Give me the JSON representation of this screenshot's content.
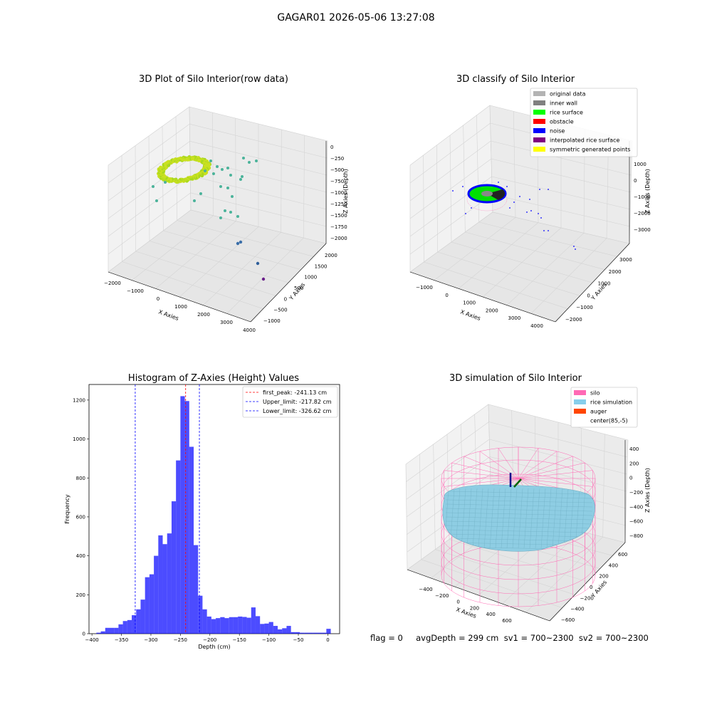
{
  "suptitle": "GAGAR01 2026-05-06 13:27:08",
  "panels": {
    "raw": {
      "title": "3D Plot of Silo Interior(row data)",
      "xlabel": "X Axies",
      "ylabel": "Y Axies",
      "zlabel": "Z Axies (Depth)",
      "xticks": [
        "−2000",
        "−1000",
        "0",
        "1000",
        "2000",
        "3000",
        "4000"
      ],
      "yticks": [
        "−1000",
        "−500",
        "0",
        "500",
        "1000",
        "1500",
        "2000"
      ],
      "zticks": [
        "0",
        "−250",
        "−500",
        "−750",
        "−1000",
        "−1250",
        "−1500",
        "−1750",
        "−2000"
      ]
    },
    "classify": {
      "title": "3D classify of Silo Interior",
      "xlabel": "X Axies",
      "ylabel": "Y Axies",
      "zlabel": "Z Axies (Depth)",
      "xticks": [
        "−1000",
        "0",
        "1000",
        "2000",
        "3000",
        "4000"
      ],
      "yticks": [
        "−2000",
        "−1000",
        "0",
        "1000",
        "2000",
        "3000"
      ],
      "zticks": [
        "1000",
        "0",
        "−1000",
        "−2000",
        "−3000"
      ],
      "legend": [
        {
          "label": "original data",
          "color": "#b3b3b3"
        },
        {
          "label": "inner wall",
          "color": "#808080"
        },
        {
          "label": "rice surface",
          "color": "#00ff00"
        },
        {
          "label": "obstacle",
          "color": "#ff0000"
        },
        {
          "label": "noise",
          "color": "#0000ff"
        },
        {
          "label": "interpolated rice surface",
          "color": "#800080"
        },
        {
          "label": "symmetric generated points",
          "color": "#ffff00"
        }
      ]
    },
    "histogram": {
      "title": "Histogram of Z-Axies (Height) Values",
      "xlabel": "Depth (cm)",
      "ylabel": "Frequency",
      "legend": [
        {
          "label": "first_peak: -241.13 cm",
          "color": "#ff0000"
        },
        {
          "label": "Upper_limit: -217.82 cm",
          "color": "#0000ff"
        },
        {
          "label": "Lower_limit: -326.62 cm",
          "color": "#0000ff"
        }
      ]
    },
    "simulation": {
      "title": "3D simulation of Silo Interior",
      "xlabel": "X Axies",
      "ylabel": "Y Axies",
      "zlabel": "Z Axies (Depth)",
      "xticks": [
        "−400",
        "−200",
        "0",
        "200",
        "400",
        "600"
      ],
      "yticks": [
        "−600",
        "−400",
        "−200",
        "0",
        "200",
        "400",
        "600"
      ],
      "zticks": [
        "400",
        "200",
        "0",
        "−200",
        "−400",
        "−600",
        "−800"
      ],
      "legend": [
        {
          "label": "silo",
          "color": "#ff69b4"
        },
        {
          "label": "rice simulation",
          "color": "#87ceeb"
        },
        {
          "label": "auger",
          "color": "#ff4500"
        },
        {
          "label": "center(85,-5)",
          "color": "#ffffff"
        }
      ]
    }
  },
  "bottom_text": "flag = 0     avgDepth = 299 cm  sv1 = 700~2300  sv2 = 700~2300",
  "chart_data": {
    "type": "bar",
    "title": "Histogram of Z-Axies (Height) Values",
    "xlabel": "Depth (cm)",
    "ylabel": "Frequency",
    "xlim": [
      -405,
      20
    ],
    "ylim": [
      0,
      1280
    ],
    "xticks": [
      -400,
      -350,
      -300,
      -250,
      -200,
      -150,
      -100,
      -50,
      0
    ],
    "yticks": [
      0,
      200,
      400,
      600,
      800,
      1000,
      1200
    ],
    "bin_width": 7.5,
    "bins_start": [
      -392.5,
      -385,
      -377.5,
      -370,
      -362.5,
      -355,
      -347.5,
      -340,
      -332.5,
      -325,
      -317.5,
      -310,
      -302.5,
      -295,
      -287.5,
      -280,
      -272.5,
      -265,
      -257.5,
      -250,
      -242.5,
      -235,
      -227.5,
      -220,
      -212.5,
      -205,
      -197.5,
      -190,
      -182.5,
      -175,
      -167.5,
      -160,
      -152.5,
      -145,
      -137.5,
      -130,
      -122.5,
      -115,
      -107.5,
      -100,
      -92.5,
      -85,
      -77.5,
      -70,
      -62.5,
      -55,
      -47.5,
      -40,
      -32.5,
      -25,
      -17.5,
      -10,
      -2.5
    ],
    "values": [
      5,
      12,
      30,
      30,
      30,
      48,
      65,
      70,
      95,
      125,
      175,
      290,
      305,
      400,
      505,
      460,
      515,
      680,
      890,
      1220,
      1195,
      960,
      455,
      195,
      125,
      88,
      75,
      80,
      85,
      80,
      85,
      85,
      88,
      86,
      82,
      135,
      90,
      50,
      52,
      60,
      40,
      22,
      28,
      40,
      8,
      8,
      5,
      5,
      5,
      5,
      5,
      5,
      25
    ],
    "vlines": [
      {
        "name": "first_peak",
        "x": -241.13,
        "color": "#ff0000"
      },
      {
        "name": "Upper_limit",
        "x": -217.82,
        "color": "#0000ff"
      },
      {
        "name": "Lower_limit",
        "x": -326.62,
        "color": "#0000ff"
      }
    ],
    "legend_position": "top-right"
  }
}
